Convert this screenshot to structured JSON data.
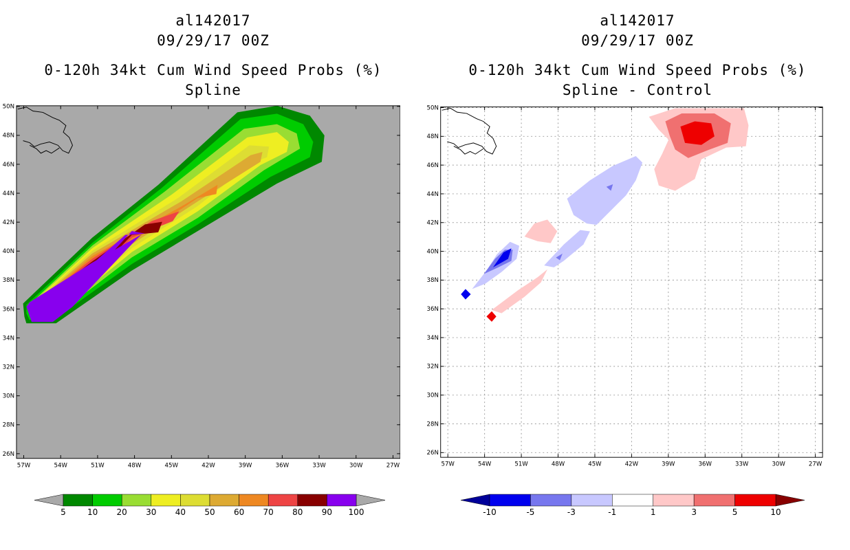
{
  "left_panel": {
    "storm_id": "al142017",
    "init_time": "09/29/17 00Z",
    "product": "0-120h 34kt Cum Wind Speed Probs (%)",
    "subtitle": "Spline",
    "background_color": "#a9a9a9",
    "colorbar": {
      "labels": [
        "5",
        "10",
        "20",
        "30",
        "40",
        "50",
        "60",
        "70",
        "80",
        "90",
        "100"
      ],
      "colors": [
        "#008800",
        "#00cc00",
        "#99dd33",
        "#eeee22",
        "#dddd33",
        "#ddaa33",
        "#ee8822",
        "#ee4444",
        "#880000",
        "#8800ee"
      ]
    }
  },
  "right_panel": {
    "storm_id": "al142017",
    "init_time": "09/29/17 00Z",
    "product": "0-120h 34kt Cum Wind Speed Probs (%)",
    "subtitle": "Spline - Control",
    "colorbar": {
      "labels": [
        "-10",
        "-5",
        "-3",
        "-1",
        "1",
        "3",
        "5",
        "10"
      ],
      "colors": [
        "#000099",
        "#0000ee",
        "#7777ee",
        "#c8c8ff",
        "#ffffff",
        "#ffc8c8",
        "#f07070",
        "#ee0000",
        "#880000"
      ]
    }
  },
  "map": {
    "lat_labels": [
      "50N",
      "48N",
      "46N",
      "44N",
      "42N",
      "40N",
      "38N",
      "36N",
      "34N",
      "32N",
      "30N",
      "28N",
      "26N"
    ],
    "lon_labels": [
      "57W",
      "54W",
      "51W",
      "48W",
      "45W",
      "42W",
      "39W",
      "36W",
      "33W",
      "30W",
      "27W"
    ]
  }
}
